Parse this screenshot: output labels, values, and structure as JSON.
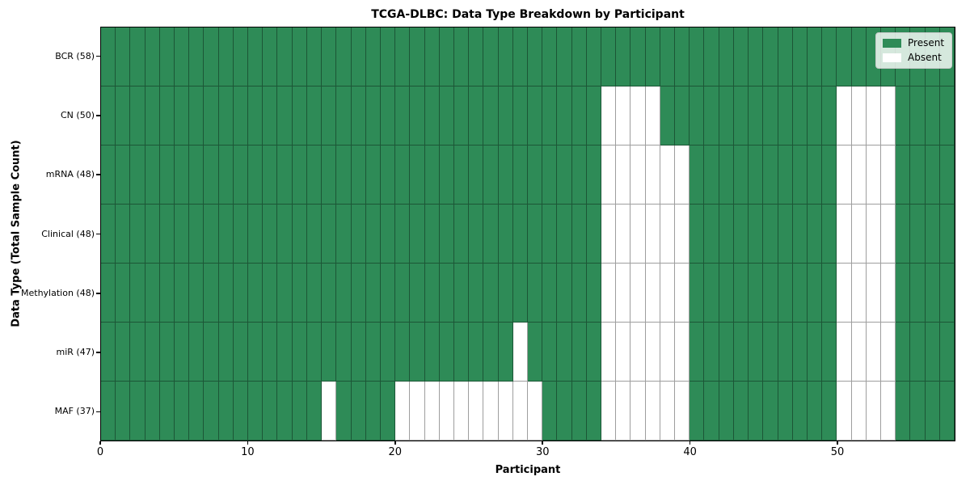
{
  "figure": {
    "title": "TCGA-DLBC: Data Type Breakdown by Participant",
    "xlabel": "Participant",
    "ylabel": "Data Type (Total Sample Count)"
  },
  "colors": {
    "present": "#2e8b57",
    "absent": "#ffffff",
    "cell_edge": "rgba(0,0,0,0.38)",
    "spine": "#000000",
    "legend_background": "rgba(255,255,255,0.8)",
    "legend_border": "#cccccc"
  },
  "legend": {
    "items": [
      {
        "label": "Present",
        "color": "#2e8b57"
      },
      {
        "label": "Absent",
        "color": "#ffffff"
      }
    ]
  },
  "chart_data": {
    "type": "heatmap",
    "title": "TCGA-DLBC: Data Type Breakdown by Participant",
    "xlabel": "Participant",
    "ylabel": "Data Type (Total Sample Count)",
    "n_participants": 58,
    "x_range": [
      0,
      58
    ],
    "x_ticks": [
      0,
      10,
      20,
      30,
      40,
      50
    ],
    "x_tick_labels": [
      "0",
      "10",
      "20",
      "30",
      "40",
      "50"
    ],
    "grid": true,
    "legend_position": "upper right",
    "value_meaning": {
      "present": "Present",
      "absent": "Absent"
    },
    "rows": [
      {
        "label": "BCR (58)",
        "total_samples": 58,
        "absent_participants": []
      },
      {
        "label": "CN (50)",
        "total_samples": 50,
        "absent_participants": [
          34,
          35,
          36,
          37,
          50,
          51,
          52,
          53
        ]
      },
      {
        "label": "mRNA (48)",
        "total_samples": 48,
        "absent_participants": [
          34,
          35,
          36,
          37,
          38,
          39,
          50,
          51,
          52,
          53
        ]
      },
      {
        "label": "Clinical (48)",
        "total_samples": 48,
        "absent_participants": [
          34,
          35,
          36,
          37,
          38,
          39,
          50,
          51,
          52,
          53
        ]
      },
      {
        "label": "Methylation (48)",
        "total_samples": 48,
        "absent_participants": [
          34,
          35,
          36,
          37,
          38,
          39,
          50,
          51,
          52,
          53
        ]
      },
      {
        "label": "miR (47)",
        "total_samples": 47,
        "absent_participants": [
          28,
          34,
          35,
          36,
          37,
          38,
          39,
          50,
          51,
          52,
          53
        ]
      },
      {
        "label": "MAF (37)",
        "total_samples": 37,
        "absent_participants": [
          15,
          20,
          21,
          22,
          23,
          24,
          25,
          26,
          27,
          28,
          29,
          34,
          35,
          36,
          37,
          38,
          39,
          50,
          51,
          52,
          53
        ]
      }
    ]
  }
}
